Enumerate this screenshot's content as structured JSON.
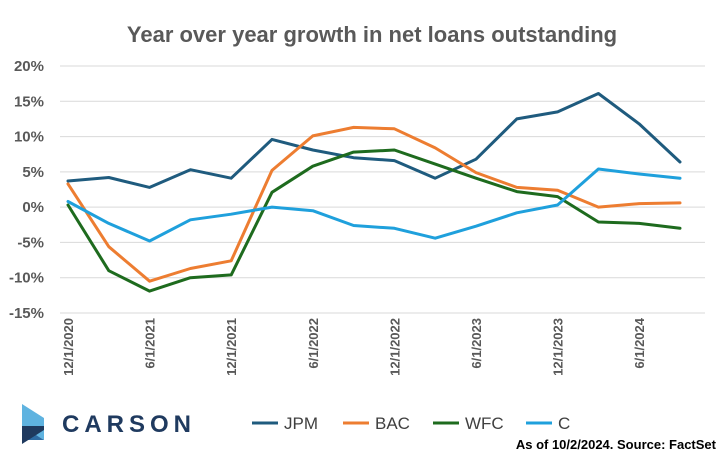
{
  "brand": {
    "name": "CARSON",
    "colors": {
      "dark": "#1f3a5f",
      "mid": "#2e6ca4",
      "light": "#5fb3e0"
    }
  },
  "footnote": "As of 10/2/2024. Source: FactSet",
  "chart_data": {
    "type": "line",
    "title": "Year over year growth in net loans outstanding",
    "xlabel": "",
    "ylabel": "",
    "ylim": [
      -15,
      20
    ],
    "y_ticks": [
      "20%",
      "15%",
      "10%",
      "5%",
      "0%",
      "-5%",
      "-10%",
      "-15%"
    ],
    "y_tick_values": [
      20,
      15,
      10,
      5,
      0,
      -5,
      -10,
      -15
    ],
    "x_tick_labels": [
      "12/1/2020",
      "6/1/2021",
      "12/1/2021",
      "6/1/2022",
      "12/1/2022",
      "6/1/2023",
      "12/1/2023",
      "6/1/2024"
    ],
    "x": [
      "12/1/2020",
      "3/1/2021",
      "6/1/2021",
      "9/1/2021",
      "12/1/2021",
      "3/1/2022",
      "6/1/2022",
      "9/1/2022",
      "12/1/2022",
      "3/1/2023",
      "6/1/2023",
      "9/1/2023",
      "12/1/2023",
      "3/1/2024",
      "6/1/2024",
      "9/1/2024"
    ],
    "grid": "horizontal",
    "legend_position": "bottom",
    "series": [
      {
        "name": "JPM",
        "color": "#1f5b7e",
        "values": [
          3.7,
          4.2,
          2.8,
          5.3,
          4.1,
          9.6,
          8.1,
          7.0,
          6.6,
          4.1,
          6.8,
          12.5,
          13.5,
          16.1,
          11.8,
          6.4
        ]
      },
      {
        "name": "BAC",
        "color": "#ed7d31",
        "values": [
          3.3,
          -5.6,
          -10.5,
          -8.7,
          -7.6,
          5.2,
          10.1,
          11.3,
          11.1,
          8.4,
          4.9,
          2.8,
          2.4,
          0.0,
          0.5,
          0.6
        ]
      },
      {
        "name": "WFC",
        "color": "#1e6b1e",
        "values": [
          0.3,
          -9.0,
          -11.9,
          -10.0,
          -9.6,
          2.1,
          5.8,
          7.8,
          8.1,
          6.1,
          4.1,
          2.2,
          1.5,
          -2.1,
          -2.3,
          -3.0
        ]
      },
      {
        "name": "C",
        "color": "#1fa0dc",
        "values": [
          0.8,
          -2.3,
          -4.8,
          -1.8,
          -1.0,
          0.0,
          -0.5,
          -2.6,
          -3.0,
          -4.4,
          -2.7,
          -0.8,
          0.3,
          5.4,
          4.7,
          4.1
        ]
      }
    ]
  }
}
